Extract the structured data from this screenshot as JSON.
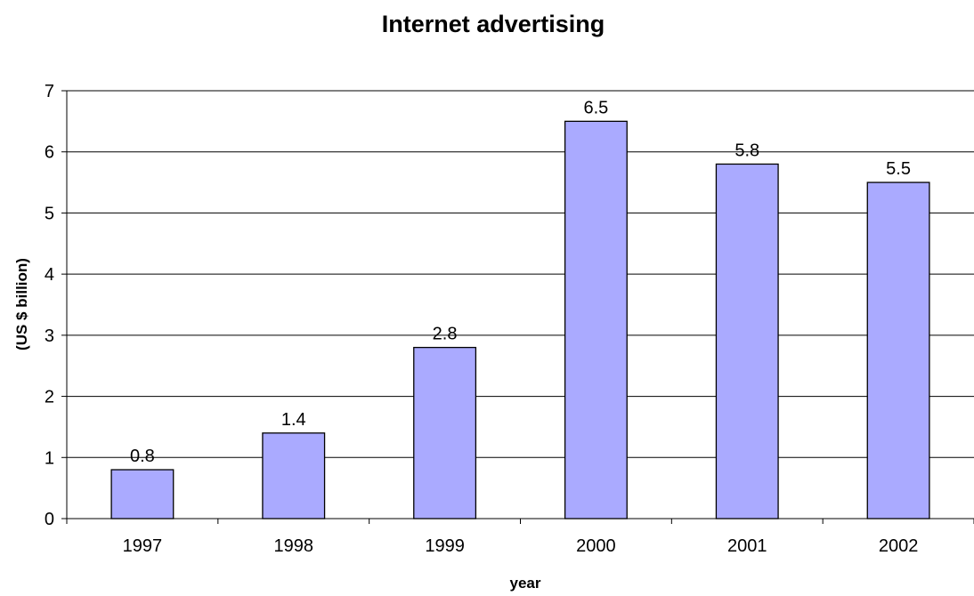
{
  "chart_data": {
    "type": "bar",
    "title": "Internet advertising",
    "xlabel": "year",
    "ylabel": "(US $ billion)",
    "categories": [
      "1997",
      "1998",
      "1999",
      "2000",
      "2001",
      "2002"
    ],
    "values": [
      0.8,
      1.4,
      2.8,
      6.5,
      5.8,
      5.5
    ],
    "data_labels": [
      "0.8",
      "1.4",
      "2.8",
      "6.5",
      "5.8",
      "5.5"
    ],
    "ylim": [
      0,
      7
    ],
    "yticks": [
      0,
      1,
      2,
      3,
      4,
      5,
      6,
      7
    ],
    "grid": true,
    "legend": "none",
    "bar_color": "#aaaaff"
  }
}
